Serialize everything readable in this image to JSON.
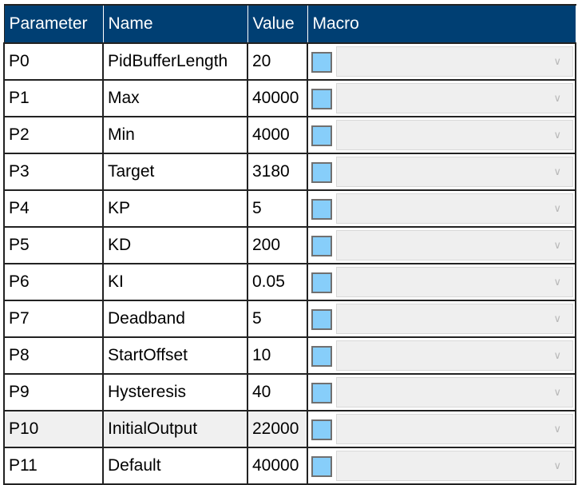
{
  "columns": [
    "Parameter",
    "Name",
    "Value",
    "Macro"
  ],
  "colors": {
    "header_bg": "#003f73",
    "swatch": "#87cefa",
    "selected_row": "#f0f0f0"
  },
  "selected_row": 10,
  "rows": [
    {
      "param": "P0",
      "name": "PidBufferLength",
      "value": "20"
    },
    {
      "param": "P1",
      "name": "Max",
      "value": "40000"
    },
    {
      "param": "P2",
      "name": "Min",
      "value": "4000"
    },
    {
      "param": "P3",
      "name": "Target",
      "value": "3180"
    },
    {
      "param": "P4",
      "name": "KP",
      "value": "5"
    },
    {
      "param": "P5",
      "name": "KD",
      "value": "200"
    },
    {
      "param": "P6",
      "name": "KI",
      "value": "0.05"
    },
    {
      "param": "P7",
      "name": "Deadband",
      "value": "5"
    },
    {
      "param": "P8",
      "name": "StartOffset",
      "value": "10"
    },
    {
      "param": "P9",
      "name": "Hysteresis",
      "value": "40"
    },
    {
      "param": "P10",
      "name": "InitialOutput",
      "value": "22000"
    },
    {
      "param": "P11",
      "name": "Default",
      "value": "40000"
    }
  ]
}
